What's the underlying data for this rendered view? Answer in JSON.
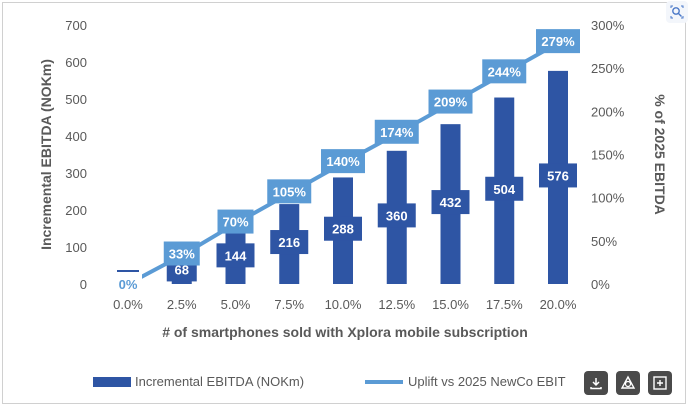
{
  "chart_data": {
    "type": "bar",
    "xlabel": "# of smartphones sold with Xplora mobile subscription",
    "ylabel": "Incremental EBITDA (NOKm)",
    "y2label": "% of 2025 EBITDA",
    "categories": [
      "0.0%",
      "2.5%",
      "5.0%",
      "7.5%",
      "10.0%",
      "12.5%",
      "15.0%",
      "17.5%",
      "20.0%"
    ],
    "ylim": [
      0,
      700
    ],
    "y2lim": [
      0,
      300
    ],
    "yticks": [
      "0",
      "100",
      "200",
      "300",
      "400",
      "500",
      "600",
      "700"
    ],
    "y2ticks": [
      "0%",
      "50%",
      "100%",
      "150%",
      "200%",
      "250%",
      "300%"
    ],
    "series": [
      {
        "name": "Incremental EBITDA (NOKm)",
        "type": "bar",
        "axis": "left",
        "color": "#2e55a4",
        "values": [
          0,
          68,
          144,
          216,
          288,
          360,
          432,
          504,
          576
        ],
        "labels": [
          "0",
          "68",
          "144",
          "216",
          "288",
          "360",
          "432",
          "504",
          "576"
        ]
      },
      {
        "name": "Uplift vs 2025 NewCo EBIT",
        "type": "line",
        "axis": "right",
        "color": "#5b9bd5",
        "values": [
          0,
          33,
          70,
          105,
          140,
          174,
          209,
          244,
          279
        ],
        "labels": [
          "0%",
          "33%",
          "70%",
          "105%",
          "140%",
          "174%",
          "209%",
          "244%",
          "279%"
        ]
      }
    ],
    "legend": "bottom",
    "grid": false
  },
  "icons": {
    "corner": "lens-icon",
    "toolbar": [
      "download-icon",
      "shapes-icon",
      "add-image-icon"
    ]
  }
}
